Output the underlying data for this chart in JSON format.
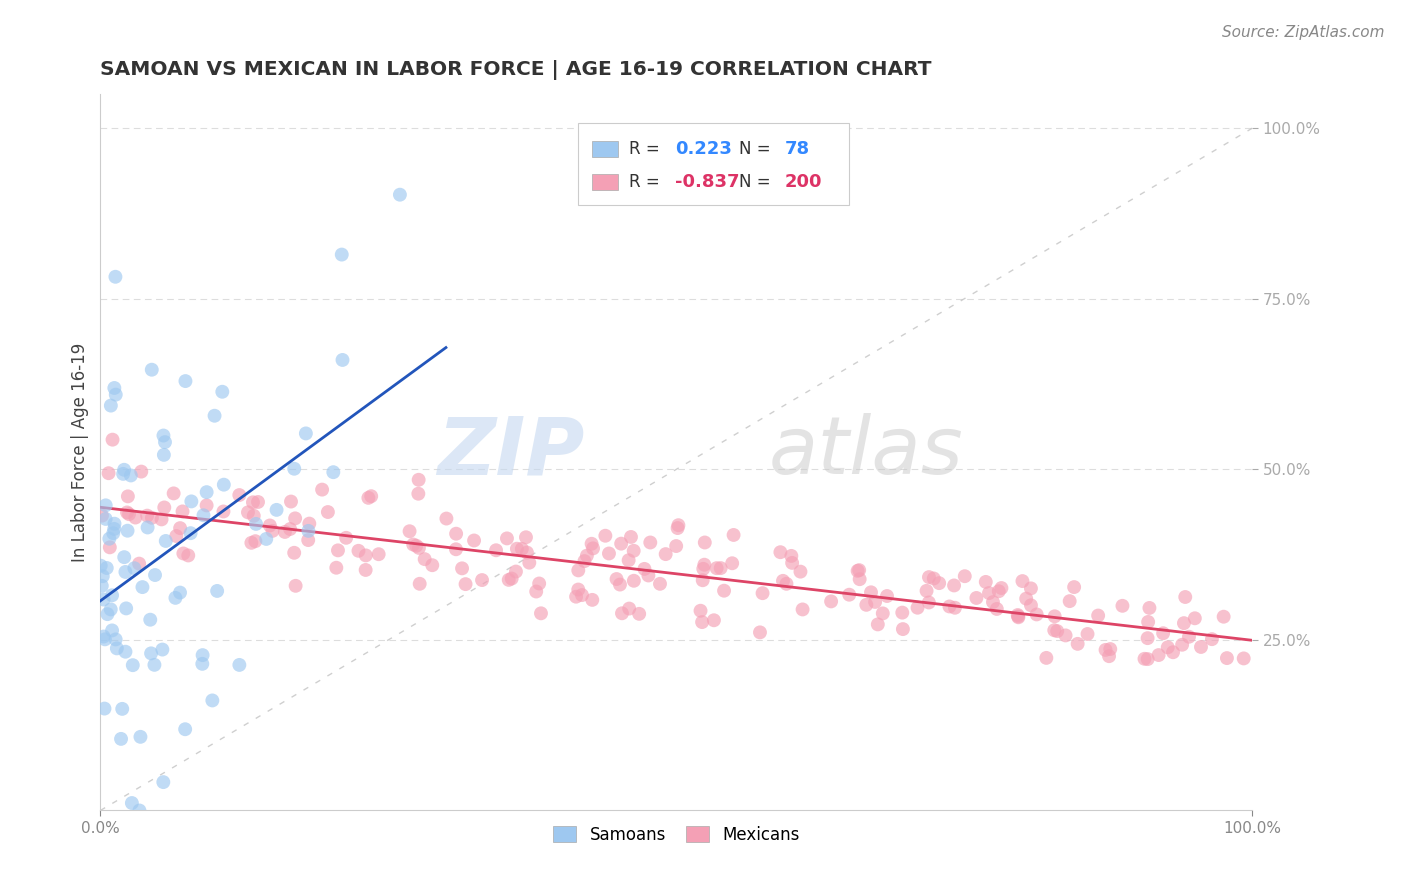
{
  "title": "SAMOAN VS MEXICAN IN LABOR FORCE | AGE 16-19 CORRELATION CHART",
  "source_text": "Source: ZipAtlas.com",
  "ylabel": "In Labor Force | Age 16-19",
  "xlim": [
    0.0,
    1.0
  ],
  "ylim": [
    0.0,
    1.05
  ],
  "samoan_R": 0.223,
  "samoan_N": 78,
  "mexican_R": -0.837,
  "mexican_N": 200,
  "samoan_color": "#9ec8f0",
  "mexican_color": "#f4a0b5",
  "samoan_line_color": "#2255bb",
  "mexican_line_color": "#dd4466",
  "ref_line_color": "#bbbbbb",
  "watermark_ZIP": "ZIP",
  "watermark_atlas": "atlas",
  "background_color": "#ffffff",
  "grid_color": "#dddddd",
  "title_color": "#333333",
  "title_fontsize": 14.5,
  "label_fontsize": 12,
  "source_fontsize": 11,
  "legend_R_color": "#333333",
  "legend_val_samoan_color": "#3388ff",
  "legend_val_mexican_color": "#dd3366",
  "legend_N_color": "#333333"
}
